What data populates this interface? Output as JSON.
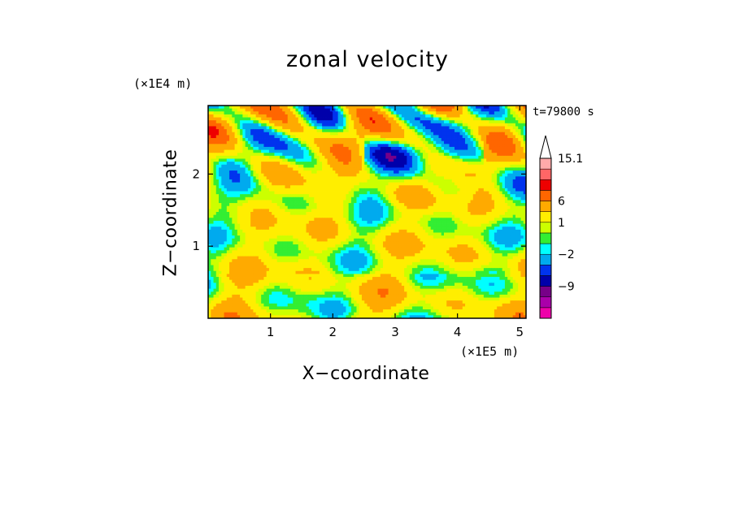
{
  "chart_data": {
    "type": "heatmap",
    "title": "zonal velocity",
    "time_label": "t=79800 s",
    "xlabel": "X−coordinate",
    "ylabel": "Z−coordinate",
    "x_unit": "(×1E5 m)",
    "z_unit": "(×1E4 m)",
    "xlim": [
      0,
      5.1
    ],
    "ylim": [
      0,
      2.95
    ],
    "x_ticks": [
      {
        "value": 1,
        "label": "1"
      },
      {
        "value": 2,
        "label": "2"
      },
      {
        "value": 3,
        "label": "3"
      },
      {
        "value": 4,
        "label": "4"
      },
      {
        "value": 5,
        "label": "5"
      }
    ],
    "z_ticks": [
      {
        "value": 1,
        "label": "1"
      },
      {
        "value": 2,
        "label": "2"
      }
    ],
    "colorbar": {
      "levels": [
        -15,
        -12,
        -9,
        -6,
        -4,
        -2,
        -1,
        0,
        1,
        3,
        6,
        9,
        12,
        15.1
      ],
      "colors": [
        "#ee00aa",
        "#aa00aa",
        "#770088",
        "#0000aa",
        "#0033ee",
        "#00aaee",
        "#00ffff",
        "#33ee33",
        "#ccff00",
        "#ffee00",
        "#ffaa00",
        "#ff6600",
        "#ee0000",
        "#ff6666",
        "#ffaaaa"
      ],
      "extend_max": true,
      "labels": [
        {
          "value": 15.1,
          "label": "15.1"
        },
        {
          "value": 6,
          "label": "6"
        },
        {
          "value": 1,
          "label": "1"
        },
        {
          "value": -2,
          "label": "−2"
        },
        {
          "value": -9,
          "label": "−9"
        }
      ]
    }
  }
}
